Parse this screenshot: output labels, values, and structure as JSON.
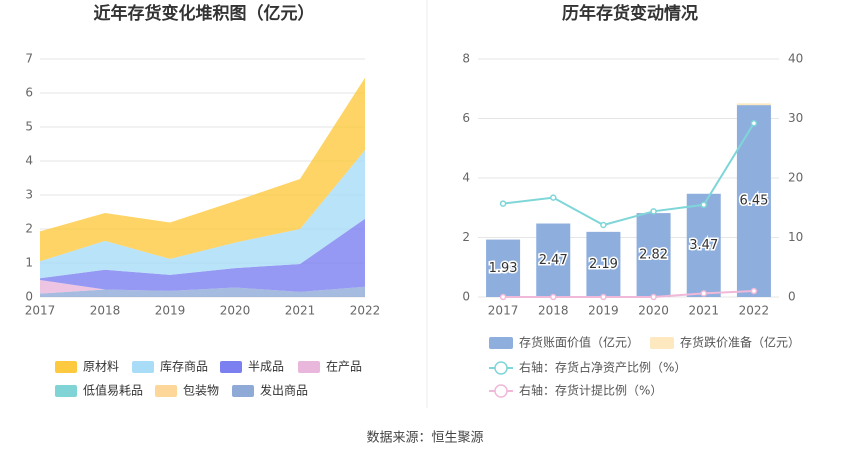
{
  "chart_data": [
    {
      "type": "area",
      "title": "近年存货变化堆积图（亿元）",
      "stacked": true,
      "categories": [
        "2017",
        "2018",
        "2019",
        "2020",
        "2021",
        "2022"
      ],
      "ylim": [
        0,
        7
      ],
      "yticks": [
        0,
        1,
        2,
        3,
        4,
        5,
        6,
        7
      ],
      "grid": true,
      "series": [
        {
          "name": "原材料",
          "color": "#fdc93f",
          "values": [
            0.88,
            0.82,
            1.07,
            1.22,
            1.47,
            2.13
          ]
        },
        {
          "name": "库存商品",
          "color": "#a8dcf7",
          "values": [
            0.5,
            0.85,
            0.47,
            0.75,
            1.03,
            2.02
          ]
        },
        {
          "name": "半成品",
          "color": "#7b7ff0",
          "values": [
            0.05,
            0.58,
            0.47,
            0.57,
            0.82,
            2.0
          ]
        },
        {
          "name": "在产品",
          "color": "#e9b6dc",
          "values": [
            0.4,
            0,
            0,
            0,
            0,
            0
          ]
        },
        {
          "name": "低值易耗品",
          "color": "#80d4d6",
          "values": [
            0,
            0,
            0,
            0,
            0,
            0
          ]
        },
        {
          "name": "包装物",
          "color": "#fdd79a",
          "values": [
            0,
            0,
            0,
            0,
            0,
            0
          ]
        },
        {
          "name": "发出商品",
          "color": "#90aad8",
          "values": [
            0.1,
            0.22,
            0.18,
            0.28,
            0.15,
            0.3
          ]
        }
      ]
    },
    {
      "type": "bar",
      "title": "历年存货变动情况",
      "stacked": true,
      "categories": [
        "2017",
        "2018",
        "2019",
        "2020",
        "2021",
        "2022"
      ],
      "ylim": [
        0,
        8
      ],
      "yticks": [
        0,
        2,
        4,
        6,
        8
      ],
      "y2lim": [
        0,
        40
      ],
      "y2ticks": [
        0,
        10,
        20,
        30,
        40
      ],
      "grid": true,
      "series": [
        {
          "name": "存货账面价值（亿元）",
          "color": "#8eaedd",
          "values": [
            1.93,
            2.47,
            2.19,
            2.82,
            3.47,
            6.45
          ]
        },
        {
          "name": "存货跌价准备（亿元）",
          "color": "#fde8c0",
          "values": [
            0,
            0,
            0,
            0,
            0,
            0.06
          ]
        },
        {
          "name": "右轴：存货占净资产比例（%）",
          "color": "#7fd6d8",
          "type": "line",
          "axis": "y2",
          "values": [
            15.7,
            16.7,
            12.1,
            14.4,
            15.5,
            29.2
          ]
        },
        {
          "name": "右轴：存货计提比例（%）",
          "color": "#f0b8d9",
          "type": "line",
          "axis": "y2",
          "values": [
            0,
            0,
            0,
            0,
            0.6,
            1.0
          ]
        }
      ]
    }
  ],
  "source": "数据来源：恒生聚源"
}
